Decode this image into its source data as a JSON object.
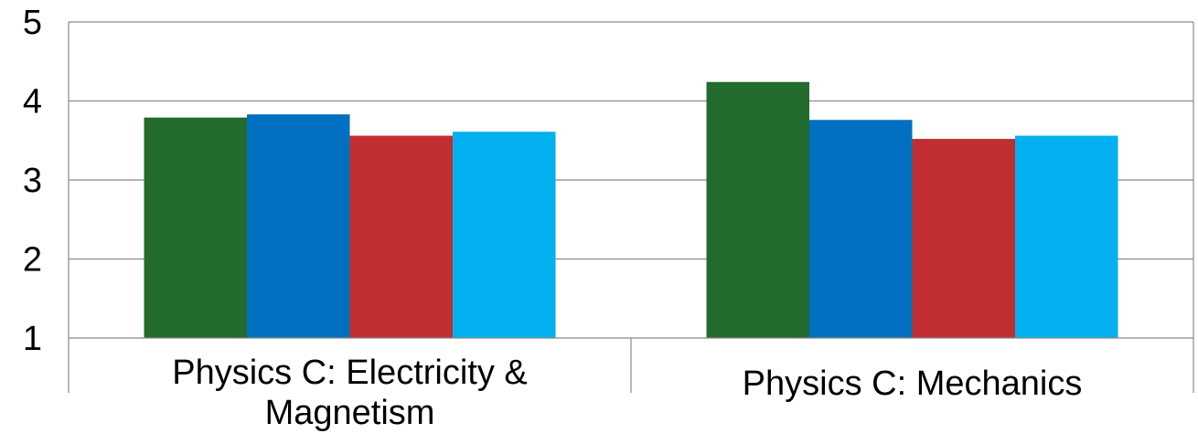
{
  "chart_data": {
    "type": "bar",
    "categories": [
      [
        "Physics C: Electricity &",
        "Magnetism"
      ],
      [
        "Physics C: Mechanics"
      ]
    ],
    "series": [
      {
        "values": [
          3.79,
          4.24
        ],
        "color": "#236B2C"
      },
      {
        "values": [
          3.83,
          3.76
        ],
        "color": "#0170C1"
      },
      {
        "values": [
          3.56,
          3.52
        ],
        "color": "#C12E31"
      },
      {
        "values": [
          3.61,
          3.56
        ],
        "color": "#02B0EF"
      }
    ],
    "yticks": [
      "1",
      "2",
      "3",
      "4",
      "5"
    ],
    "ylim": [
      1,
      5
    ],
    "grid": true,
    "legend": "none",
    "title": "",
    "xlabel": "",
    "ylabel": ""
  }
}
